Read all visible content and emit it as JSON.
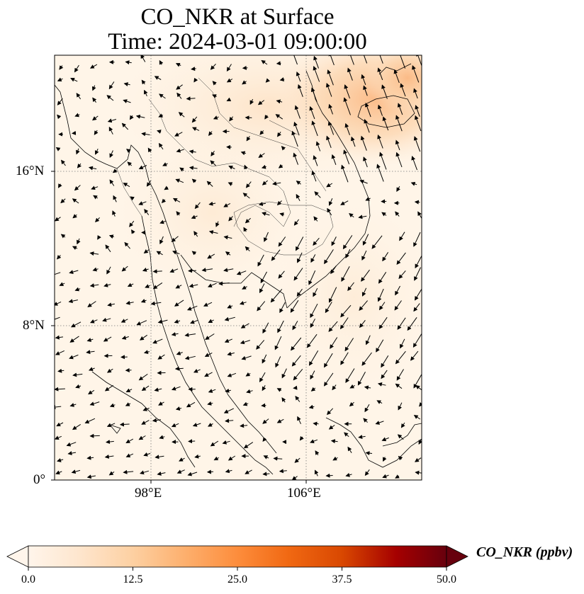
{
  "map": {
    "title_line1": "CO_NKR at Surface",
    "title_line2": "Time: 2024-03-01 09:00:00",
    "lat_labels": [
      "16°N",
      "8°N",
      "0°"
    ],
    "lon_labels": [
      "98°E",
      "106°E"
    ],
    "extent": {
      "lon_min": 93,
      "lon_max": 112,
      "lat_min": 0,
      "lat_max": 22
    },
    "gridlines": {
      "lon": [
        98,
        106
      ],
      "lat": [
        16,
        8
      ],
      "style": "dotted"
    },
    "colorbar": {
      "label": "CO_NKR (ppbv)",
      "ticks": [
        "0.0",
        "12.5",
        "25.0",
        "37.5",
        "50.0"
      ],
      "min": 0,
      "max": 50,
      "extend": "both",
      "colormap": "Oranges",
      "colors": [
        "#fff5eb",
        "#fee6ce",
        "#fdd0a2",
        "#fdae6b",
        "#fd8d3c",
        "#f16913",
        "#d94801",
        "#a50000",
        "#67000d"
      ]
    },
    "field_colors": {
      "background": "#fff5e8",
      "high": "#fbc08a",
      "mid": "#fde0c2",
      "low": "#fff6ec"
    },
    "wind_vectors": "quiver arrows, black"
  }
}
